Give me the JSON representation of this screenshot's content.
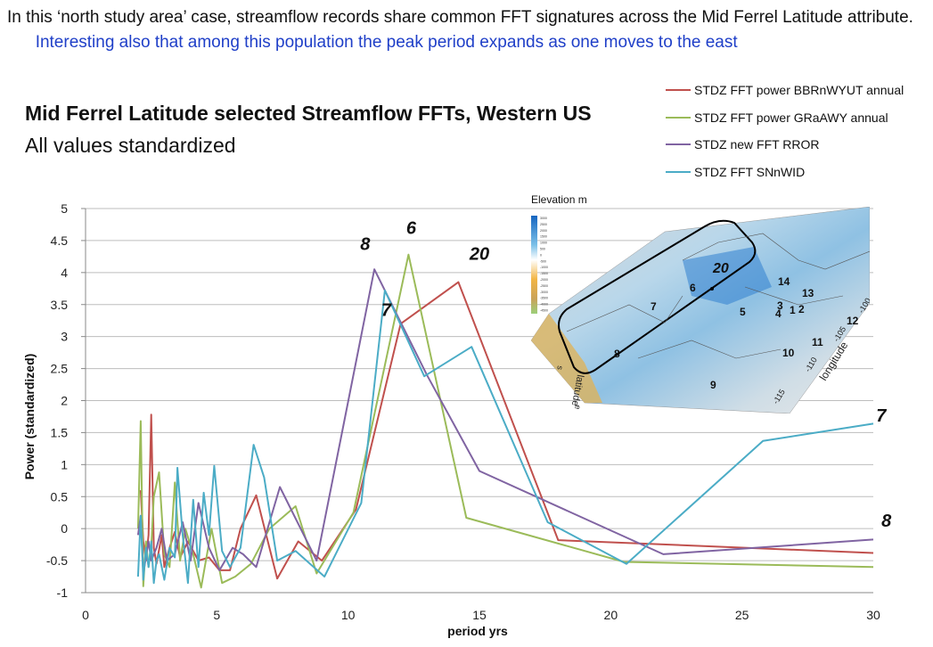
{
  "caption": {
    "part1": "In this ‘north study area’ case, streamflow records share common FFT signatures across the Mid Ferrel Latitude attribute.",
    "part2": "Interesting also that among this population the peak period expands as one moves to the east"
  },
  "colors": {
    "red": "#c0504d",
    "green": "#9bbb59",
    "purple": "#8064a2",
    "cyan": "#4bacc6"
  },
  "chart_data": {
    "type": "line",
    "title": "Mid Ferrel Latitude selected Streamflow FFTs, Western US",
    "subtitle": "All values standardized",
    "xlabel": "period yrs",
    "ylabel": "Power (standardized)",
    "xlim": [
      0,
      30
    ],
    "ylim": [
      -1,
      5
    ],
    "xticks": [
      0,
      5,
      10,
      15,
      20,
      25,
      30
    ],
    "yticks": [
      "5",
      "4.5",
      "4",
      "3.5",
      "3",
      "2.5",
      "2",
      "1.5",
      "1",
      "0.5",
      "0",
      "-0.5",
      "-1"
    ],
    "grid": true,
    "legend_position": "top-right",
    "series": [
      {
        "name": "STDZ FFT power BBRnWYUT annual",
        "color": "#c0504d",
        "x": [
          2.1,
          2.2,
          2.3,
          2.4,
          2.5,
          2.6,
          2.7,
          2.9,
          3.0,
          3.2,
          3.4,
          3.6,
          3.9,
          4.3,
          4.7,
          5.1,
          5.5,
          5.9,
          6.5,
          7.3,
          8.1,
          9.0,
          10.3,
          12.0,
          14.2,
          18.0,
          30.0
        ],
        "y": [
          0.6,
          -0.2,
          -0.5,
          -0.1,
          1.78,
          -0.3,
          -0.55,
          -0.1,
          -0.6,
          -0.3,
          -0.05,
          -0.45,
          -0.2,
          -0.5,
          -0.45,
          -0.65,
          -0.65,
          0.0,
          0.52,
          -0.78,
          -0.2,
          -0.5,
          0.3,
          3.2,
          3.85,
          -0.18,
          -0.38
        ]
      },
      {
        "name": "STDZ FFT power GRaAWY annual",
        "color": "#9bbb59",
        "x": [
          2.0,
          2.1,
          2.2,
          2.3,
          2.4,
          2.5,
          2.6,
          2.8,
          3.0,
          3.2,
          3.4,
          3.6,
          3.8,
          4.1,
          4.4,
          4.8,
          5.2,
          5.7,
          6.3,
          7.0,
          8.0,
          8.8,
          10.2,
          12.3,
          14.5,
          20.5,
          30.0
        ],
        "y": [
          0.0,
          1.68,
          -0.9,
          -0.2,
          -0.6,
          -0.3,
          0.5,
          0.88,
          -0.4,
          -0.6,
          0.72,
          -0.5,
          0.0,
          -0.4,
          -0.92,
          0.0,
          -0.85,
          -0.75,
          -0.55,
          0.0,
          0.35,
          -0.7,
          0.25,
          4.28,
          0.17,
          -0.52,
          -0.6
        ]
      },
      {
        "name": "STDZ new FFT RROR",
        "color": "#8064a2",
        "x": [
          2.0,
          2.1,
          2.2,
          2.4,
          2.5,
          2.7,
          2.9,
          3.1,
          3.4,
          3.7,
          4.0,
          4.3,
          4.7,
          5.1,
          5.6,
          6.0,
          6.5,
          7.4,
          8.8,
          11.0,
          13.0,
          15.0,
          22.0,
          30.0
        ],
        "y": [
          -0.1,
          0.2,
          -0.7,
          -0.2,
          -0.5,
          -0.3,
          0.0,
          -0.5,
          -0.4,
          0.1,
          -0.5,
          0.4,
          -0.3,
          -0.65,
          -0.3,
          -0.4,
          -0.6,
          0.65,
          -0.5,
          4.05,
          2.4,
          0.9,
          -0.4,
          -0.17
        ]
      },
      {
        "name": "STDZ FFT SNnWID",
        "color": "#4bacc6",
        "x": [
          2.0,
          2.1,
          2.2,
          2.3,
          2.4,
          2.5,
          2.6,
          2.7,
          2.8,
          3.0,
          3.2,
          3.4,
          3.5,
          3.7,
          3.9,
          4.1,
          4.3,
          4.5,
          4.7,
          4.9,
          5.2,
          5.5,
          5.9,
          6.4,
          6.8,
          7.3,
          8.0,
          9.1,
          10.5,
          11.4,
          12.9,
          14.7,
          17.6,
          20.6,
          25.8,
          30.0
        ],
        "y": [
          -0.75,
          0.2,
          -0.8,
          -0.3,
          -0.6,
          -0.2,
          -0.85,
          -0.5,
          -0.4,
          -0.8,
          -0.3,
          -0.45,
          0.95,
          -0.1,
          -0.85,
          0.45,
          -0.6,
          0.56,
          -0.1,
          0.98,
          -0.35,
          -0.6,
          -0.3,
          1.31,
          0.8,
          -0.5,
          -0.35,
          -0.75,
          0.4,
          3.72,
          2.38,
          2.84,
          0.1,
          -0.55,
          1.37,
          1.64
        ]
      }
    ],
    "annotations": [
      {
        "text": "8",
        "x": 10.65,
        "y": 4.35
      },
      {
        "text": "6",
        "x": 12.4,
        "y": 4.6
      },
      {
        "text": "20",
        "x": 15.0,
        "y": 4.2
      },
      {
        "text": "7",
        "x": 11.45,
        "y": 3.32
      },
      {
        "text": "7",
        "x": 30.3,
        "y": 1.67
      },
      {
        "text": "8",
        "x": 30.5,
        "y": 0.03
      }
    ]
  },
  "map": {
    "elevation_title": "Elevation m",
    "legend_ticks": [
      "3000",
      "2500",
      "2000",
      "1500",
      "1000",
      "500",
      "0",
      "-500",
      "-1000",
      "-1500",
      "-2000",
      "-2500",
      "-3000",
      "-3500",
      "-4000",
      "-4500"
    ],
    "labels": [
      "20",
      "6",
      "7",
      "14",
      "13",
      "3",
      "5",
      "4",
      "1",
      "2",
      "12",
      "11",
      "8",
      "10",
      "9"
    ],
    "axis_latitude": "latitude",
    "axis_longitude": "longitude",
    "lat_ticks": [
      "e",
      "s"
    ],
    "lon_ticks": [
      "-100",
      "-105",
      "-110",
      "-115"
    ]
  }
}
